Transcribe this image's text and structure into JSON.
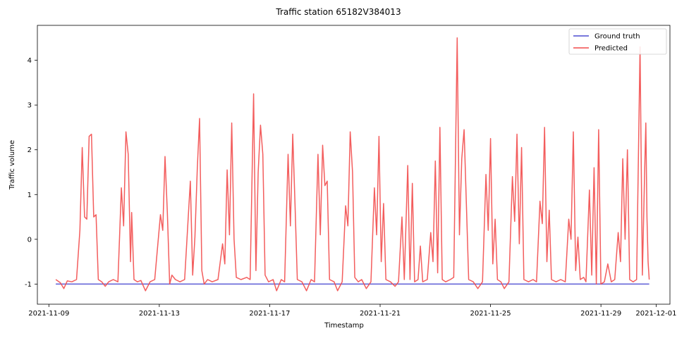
{
  "chart_data": {
    "type": "line",
    "title": "Traffic station 65182V384013",
    "xlabel": "Timestamp",
    "ylabel": "Traffic volume",
    "x_range": [
      "2021-11-08T14:00",
      "2021-12-01T12:00"
    ],
    "ylim": [
      -1.45,
      4.78
    ],
    "x_ticks": [
      "2021-11-09",
      "2021-11-13",
      "2021-11-17",
      "2021-11-21",
      "2021-11-25",
      "2021-11-29",
      "2021-12-01"
    ],
    "y_ticks": [
      -1,
      0,
      1,
      2,
      3,
      4
    ],
    "grid": false,
    "legend": "top-right",
    "series": [
      {
        "name": "Ground truth",
        "color": "#4b4bd1",
        "points": [
          [
            "2021-11-09T06:00",
            -1.0
          ],
          [
            "2021-11-30T18:00",
            -1.0
          ]
        ]
      },
      {
        "name": "Predicted",
        "color": "#f24b4b",
        "points": [
          [
            "2021-11-09T06:00",
            -0.9
          ],
          [
            "2021-11-09T10:00",
            -0.97
          ],
          [
            "2021-11-09T13:00",
            -1.1
          ],
          [
            "2021-11-09T16:00",
            -0.93
          ],
          [
            "2021-11-09T20:00",
            -0.95
          ],
          [
            "2021-11-10T00:00",
            -0.9
          ],
          [
            "2021-11-10T03:00",
            0.2
          ],
          [
            "2021-11-10T05:00",
            2.05
          ],
          [
            "2021-11-10T07:00",
            0.5
          ],
          [
            "2021-11-10T09:00",
            0.45
          ],
          [
            "2021-11-10T11:00",
            2.3
          ],
          [
            "2021-11-10T13:00",
            2.35
          ],
          [
            "2021-11-10T15:00",
            0.5
          ],
          [
            "2021-11-10T17:00",
            0.55
          ],
          [
            "2021-11-10T19:00",
            -0.9
          ],
          [
            "2021-11-10T22:00",
            -0.95
          ],
          [
            "2021-11-11T01:00",
            -1.05
          ],
          [
            "2021-11-11T04:00",
            -0.95
          ],
          [
            "2021-11-11T08:00",
            -0.9
          ],
          [
            "2021-11-11T12:00",
            -0.95
          ],
          [
            "2021-11-11T15:00",
            1.15
          ],
          [
            "2021-11-11T17:00",
            0.3
          ],
          [
            "2021-11-11T19:00",
            2.4
          ],
          [
            "2021-11-11T21:00",
            1.9
          ],
          [
            "2021-11-11T23:00",
            -0.5
          ],
          [
            "2021-11-12T00:00",
            0.6
          ],
          [
            "2021-11-12T02:00",
            -0.9
          ],
          [
            "2021-11-12T05:00",
            -0.95
          ],
          [
            "2021-11-12T08:00",
            -0.92
          ],
          [
            "2021-11-12T12:00",
            -1.15
          ],
          [
            "2021-11-12T16:00",
            -0.95
          ],
          [
            "2021-11-12T20:00",
            -0.9
          ],
          [
            "2021-11-13T01:00",
            0.55
          ],
          [
            "2021-11-13T03:00",
            0.2
          ],
          [
            "2021-11-13T05:00",
            1.85
          ],
          [
            "2021-11-13T07:00",
            0.6
          ],
          [
            "2021-11-13T09:00",
            -1.0
          ],
          [
            "2021-11-13T11:00",
            -0.8
          ],
          [
            "2021-11-13T14:00",
            -0.9
          ],
          [
            "2021-11-13T18:00",
            -0.95
          ],
          [
            "2021-11-13T22:00",
            -0.9
          ],
          [
            "2021-11-14T03:00",
            1.3
          ],
          [
            "2021-11-14T05:00",
            -0.8
          ],
          [
            "2021-11-14T07:00",
            0.05
          ],
          [
            "2021-11-14T09:00",
            1.55
          ],
          [
            "2021-11-14T11:00",
            2.7
          ],
          [
            "2021-11-14T13:00",
            -0.7
          ],
          [
            "2021-11-14T15:00",
            -1.0
          ],
          [
            "2021-11-14T18:00",
            -0.9
          ],
          [
            "2021-11-14T22:00",
            -0.95
          ],
          [
            "2021-11-15T03:00",
            -0.9
          ],
          [
            "2021-11-15T07:00",
            -0.1
          ],
          [
            "2021-11-15T09:00",
            -0.55
          ],
          [
            "2021-11-15T11:00",
            1.55
          ],
          [
            "2021-11-15T13:00",
            0.1
          ],
          [
            "2021-11-15T15:00",
            2.6
          ],
          [
            "2021-11-15T17:00",
            0.0
          ],
          [
            "2021-11-15T19:00",
            -0.85
          ],
          [
            "2021-11-15T23:00",
            -0.9
          ],
          [
            "2021-11-16T04:00",
            -0.85
          ],
          [
            "2021-11-16T07:00",
            -0.9
          ],
          [
            "2021-11-16T10:00",
            3.25
          ],
          [
            "2021-11-16T12:00",
            -0.7
          ],
          [
            "2021-11-16T14:00",
            1.5
          ],
          [
            "2021-11-16T16:00",
            2.55
          ],
          [
            "2021-11-16T18:00",
            1.9
          ],
          [
            "2021-11-16T20:00",
            -0.8
          ],
          [
            "2021-11-16T23:00",
            -0.95
          ],
          [
            "2021-11-17T03:00",
            -0.9
          ],
          [
            "2021-11-17T06:00",
            -1.15
          ],
          [
            "2021-11-17T10:00",
            -0.9
          ],
          [
            "2021-11-17T13:00",
            -0.95
          ],
          [
            "2021-11-17T16:00",
            1.9
          ],
          [
            "2021-11-17T18:00",
            0.3
          ],
          [
            "2021-11-17T20:00",
            2.35
          ],
          [
            "2021-11-17T22:00",
            0.8
          ],
          [
            "2021-11-18T00:00",
            -0.9
          ],
          [
            "2021-11-18T04:00",
            -0.95
          ],
          [
            "2021-11-18T08:00",
            -1.15
          ],
          [
            "2021-11-18T12:00",
            -0.9
          ],
          [
            "2021-11-18T15:00",
            -0.95
          ],
          [
            "2021-11-18T18:00",
            1.9
          ],
          [
            "2021-11-18T20:00",
            0.1
          ],
          [
            "2021-11-18T22:00",
            2.1
          ],
          [
            "2021-11-19T00:00",
            1.2
          ],
          [
            "2021-11-19T02:00",
            1.3
          ],
          [
            "2021-11-19T04:00",
            -0.9
          ],
          [
            "2021-11-19T08:00",
            -0.95
          ],
          [
            "2021-11-19T11:00",
            -1.15
          ],
          [
            "2021-11-19T15:00",
            -0.95
          ],
          [
            "2021-11-19T18:00",
            0.75
          ],
          [
            "2021-11-19T20:00",
            0.3
          ],
          [
            "2021-11-19T22:00",
            2.4
          ],
          [
            "2021-11-20T00:00",
            1.5
          ],
          [
            "2021-11-20T02:00",
            -0.85
          ],
          [
            "2021-11-20T05:00",
            -0.95
          ],
          [
            "2021-11-20T08:00",
            -0.9
          ],
          [
            "2021-11-20T12:00",
            -1.1
          ],
          [
            "2021-11-20T16:00",
            -0.95
          ],
          [
            "2021-11-20T19:00",
            1.15
          ],
          [
            "2021-11-20T21:00",
            0.1
          ],
          [
            "2021-11-20T23:00",
            2.3
          ],
          [
            "2021-11-21T01:00",
            -0.5
          ],
          [
            "2021-11-21T03:00",
            0.8
          ],
          [
            "2021-11-21T05:00",
            -0.9
          ],
          [
            "2021-11-21T09:00",
            -0.95
          ],
          [
            "2021-11-21T13:00",
            -1.05
          ],
          [
            "2021-11-21T16:00",
            -0.95
          ],
          [
            "2021-11-21T19:00",
            0.5
          ],
          [
            "2021-11-21T21:00",
            -0.9
          ],
          [
            "2021-11-22T00:00",
            1.65
          ],
          [
            "2021-11-22T02:00",
            -0.9
          ],
          [
            "2021-11-22T04:00",
            1.25
          ],
          [
            "2021-11-22T06:00",
            -0.95
          ],
          [
            "2021-11-22T09:00",
            -0.9
          ],
          [
            "2021-11-22T11:00",
            -0.15
          ],
          [
            "2021-11-22T13:00",
            -0.95
          ],
          [
            "2021-11-22T17:00",
            -0.9
          ],
          [
            "2021-11-22T20:00",
            0.15
          ],
          [
            "2021-11-22T22:00",
            -0.5
          ],
          [
            "2021-11-23T00:00",
            1.75
          ],
          [
            "2021-11-23T02:00",
            -0.75
          ],
          [
            "2021-11-23T04:00",
            2.5
          ],
          [
            "2021-11-23T06:00",
            -0.9
          ],
          [
            "2021-11-23T09:00",
            -0.95
          ],
          [
            "2021-11-23T13:00",
            -0.9
          ],
          [
            "2021-11-23T16:00",
            -0.85
          ],
          [
            "2021-11-23T19:00",
            4.5
          ],
          [
            "2021-11-23T21:00",
            0.1
          ],
          [
            "2021-11-23T23:00",
            1.8
          ],
          [
            "2021-11-24T01:00",
            2.45
          ],
          [
            "2021-11-24T03:00",
            0.8
          ],
          [
            "2021-11-24T05:00",
            -0.9
          ],
          [
            "2021-11-24T09:00",
            -0.95
          ],
          [
            "2021-11-24T13:00",
            -1.1
          ],
          [
            "2021-11-24T17:00",
            -0.95
          ],
          [
            "2021-11-24T20:00",
            1.45
          ],
          [
            "2021-11-24T22:00",
            0.2
          ],
          [
            "2021-11-25T00:00",
            2.25
          ],
          [
            "2021-11-25T02:00",
            -0.55
          ],
          [
            "2021-11-25T04:00",
            0.45
          ],
          [
            "2021-11-25T06:00",
            -0.9
          ],
          [
            "2021-11-25T09:00",
            -0.95
          ],
          [
            "2021-11-25T12:00",
            -1.1
          ],
          [
            "2021-11-25T16:00",
            -0.95
          ],
          [
            "2021-11-25T19:00",
            1.4
          ],
          [
            "2021-11-25T21:00",
            0.4
          ],
          [
            "2021-11-25T23:00",
            2.35
          ],
          [
            "2021-11-26T01:00",
            -0.1
          ],
          [
            "2021-11-26T03:00",
            2.05
          ],
          [
            "2021-11-26T05:00",
            -0.9
          ],
          [
            "2021-11-26T09:00",
            -0.95
          ],
          [
            "2021-11-26T13:00",
            -0.9
          ],
          [
            "2021-11-26T16:00",
            -0.95
          ],
          [
            "2021-11-26T19:00",
            0.85
          ],
          [
            "2021-11-26T21:00",
            0.35
          ],
          [
            "2021-11-26T23:00",
            2.5
          ],
          [
            "2021-11-27T01:00",
            -0.5
          ],
          [
            "2021-11-27T03:00",
            0.65
          ],
          [
            "2021-11-27T05:00",
            -0.9
          ],
          [
            "2021-11-27T09:00",
            -0.95
          ],
          [
            "2021-11-27T13:00",
            -0.9
          ],
          [
            "2021-11-27T17:00",
            -0.95
          ],
          [
            "2021-11-27T20:00",
            0.45
          ],
          [
            "2021-11-27T22:00",
            0.0
          ],
          [
            "2021-11-28T00:00",
            2.4
          ],
          [
            "2021-11-28T02:00",
            -0.7
          ],
          [
            "2021-11-28T04:00",
            0.05
          ],
          [
            "2021-11-28T06:00",
            -0.9
          ],
          [
            "2021-11-28T09:00",
            -0.85
          ],
          [
            "2021-11-28T11:00",
            -0.95
          ],
          [
            "2021-11-28T14:00",
            1.1
          ],
          [
            "2021-11-28T16:00",
            -0.8
          ],
          [
            "2021-11-28T18:00",
            1.6
          ],
          [
            "2021-11-28T20:00",
            -1.0
          ],
          [
            "2021-11-28T22:00",
            2.45
          ],
          [
            "2021-11-29T00:00",
            -1.0
          ],
          [
            "2021-11-29T03:00",
            -0.95
          ],
          [
            "2021-11-29T06:00",
            -0.55
          ],
          [
            "2021-11-29T09:00",
            -0.95
          ],
          [
            "2021-11-29T12:00",
            -0.9
          ],
          [
            "2021-11-29T15:00",
            0.15
          ],
          [
            "2021-11-29T17:00",
            -0.5
          ],
          [
            "2021-11-29T19:00",
            1.8
          ],
          [
            "2021-11-29T21:00",
            0.0
          ],
          [
            "2021-11-29T23:00",
            2.0
          ],
          [
            "2021-11-30T01:00",
            -0.9
          ],
          [
            "2021-11-30T04:00",
            -0.95
          ],
          [
            "2021-11-30T07:00",
            -0.9
          ],
          [
            "2021-11-30T10:00",
            4.3
          ],
          [
            "2021-11-30T12:00",
            -0.8
          ],
          [
            "2021-11-30T14:00",
            1.5
          ],
          [
            "2021-11-30T15:00",
            2.6
          ],
          [
            "2021-11-30T16:00",
            0.5
          ],
          [
            "2021-11-30T17:00",
            -0.5
          ],
          [
            "2021-11-30T18:00",
            -0.9
          ]
        ]
      }
    ]
  }
}
